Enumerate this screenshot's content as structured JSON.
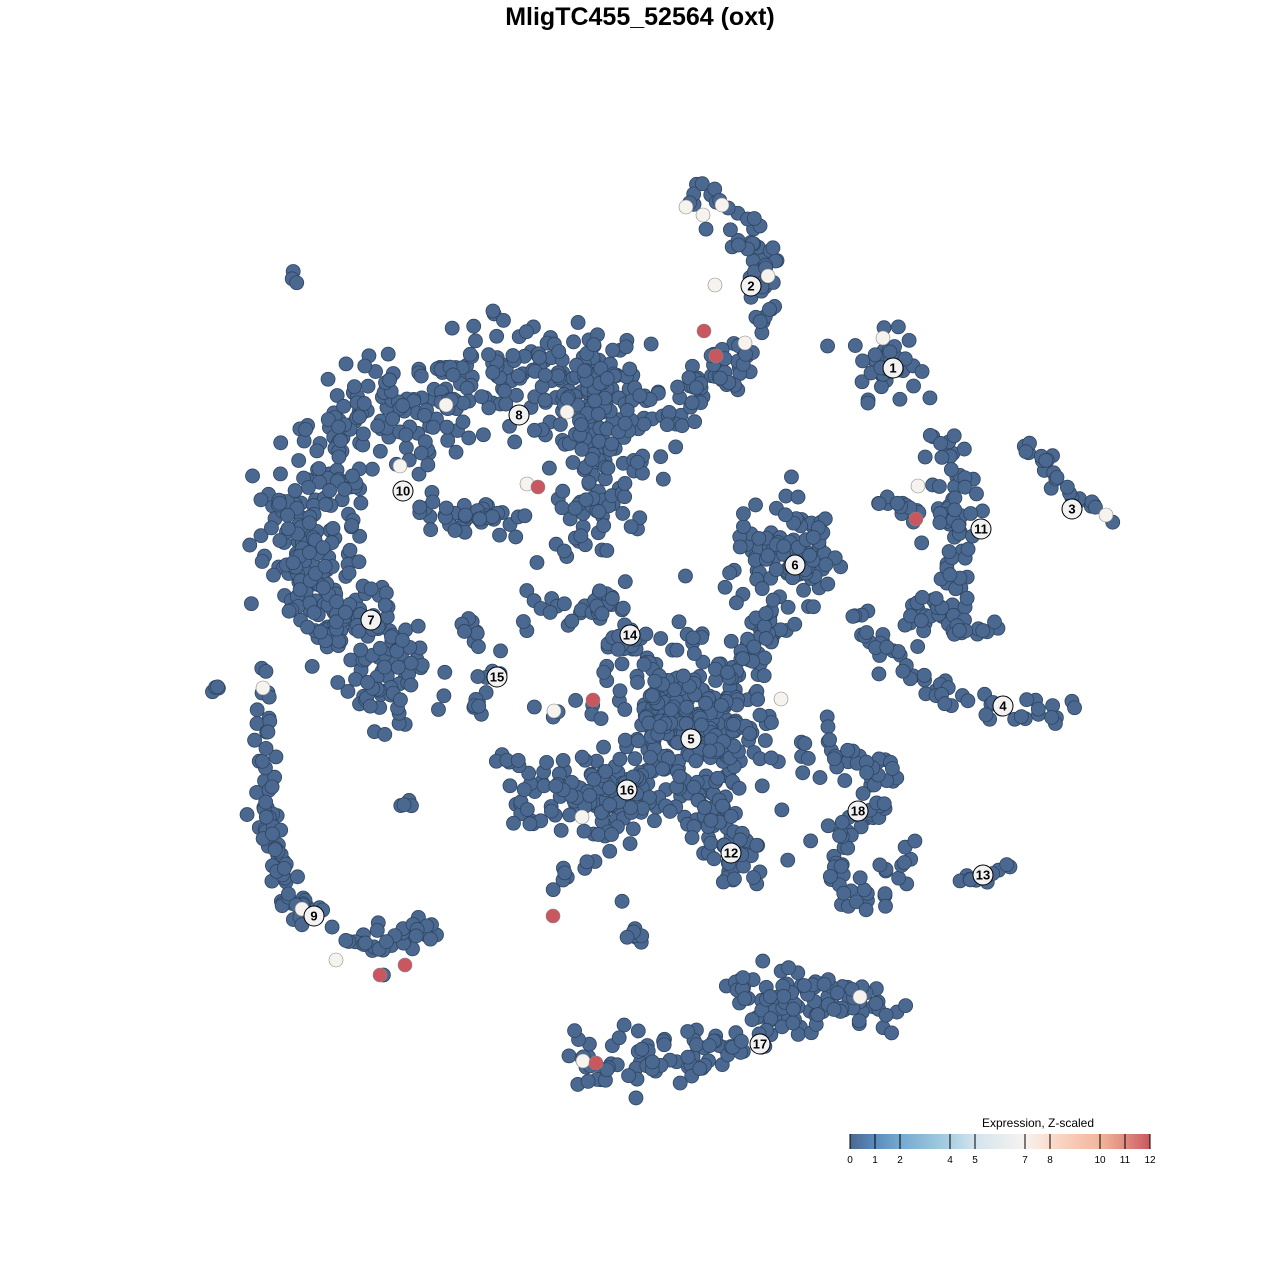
{
  "chart_data": {
    "type": "scatter",
    "title": "MligTC455_52564 (oxt)",
    "xlim": [
      -64,
      64
    ],
    "ylim": [
      -64,
      64
    ],
    "axes_visible": false,
    "grid": false,
    "point_color_default": "#4a6890",
    "background_clusters": [
      {
        "path": [
          [
            5,
            44.5
          ],
          [
            10,
            42
          ],
          [
            12,
            38
          ],
          [
            12.5,
            34
          ],
          [
            10.5,
            30
          ],
          [
            7.5,
            26.5
          ],
          [
            5,
            23.5
          ],
          [
            2.5,
            22.7
          ]
        ],
        "spread": 2.2,
        "n": 110
      },
      {
        "path": [
          [
            24.5,
            27.5
          ]
        ],
        "spread": 3,
        "n": 40
      },
      {
        "path": [
          [
            29.5,
            20.5
          ],
          [
            31.5,
            17
          ],
          [
            31.5,
            13
          ],
          [
            32.5,
            9
          ],
          [
            31.5,
            5
          ],
          [
            29.5,
            2.5
          ],
          [
            27,
            2
          ]
        ],
        "spread": 2,
        "n": 90
      },
      {
        "path": [
          [
            24,
            14
          ],
          [
            28,
            13
          ]
        ],
        "spread": 1.2,
        "n": 15
      },
      {
        "path": [
          [
            30,
            1.5
          ],
          [
            36,
            1
          ]
        ],
        "spread": 1,
        "n": 12
      },
      {
        "path": [
          [
            38.5,
            19.3
          ],
          [
            41,
            17
          ],
          [
            43,
            13.5
          ],
          [
            47,
            12.5
          ]
        ],
        "spread": 1,
        "n": 25
      },
      {
        "path": [
          [
            21.5,
            3.5
          ],
          [
            24,
            -0.5
          ],
          [
            28,
            -4
          ],
          [
            33,
            -6
          ],
          [
            39,
            -7.5
          ],
          [
            42,
            -6.5
          ]
        ],
        "spread": 1.2,
        "n": 55
      },
      {
        "path": [
          [
            14.5,
            8.5
          ]
        ],
        "spread": 4.5,
        "n": 110
      },
      {
        "path": [
          [
            9,
            -5
          ],
          [
            12,
            0
          ],
          [
            13.5,
            3
          ]
        ],
        "spread": 2,
        "n": 40
      },
      {
        "path": [
          [
            -33,
            15
          ],
          [
            -28,
            20
          ],
          [
            -21,
            24
          ],
          [
            -14,
            26.5
          ],
          [
            -6,
            27
          ],
          [
            -4,
            23
          ],
          [
            -4,
            17
          ],
          [
            -4.5,
            11
          ]
        ],
        "spread": 5,
        "n": 450
      },
      {
        "path": [
          [
            -34,
            14
          ],
          [
            -33.5,
            7
          ],
          [
            -31,
            3
          ],
          [
            -26,
            -1
          ],
          [
            -24,
            -6
          ]
        ],
        "spread": 4,
        "n": 250
      },
      {
        "path": [
          [
            -21,
            13
          ],
          [
            -12,
            12
          ]
        ],
        "spread": 2,
        "n": 40
      },
      {
        "path": [
          [
            -36.8,
            -3
          ],
          [
            -37.2,
            -12
          ],
          [
            -37,
            -20
          ],
          [
            -35,
            -26
          ],
          [
            -30,
            -29
          ],
          [
            -25,
            -31
          ],
          [
            -21.5,
            -28.5
          ]
        ],
        "spread": 1.5,
        "n": 110
      },
      {
        "path": [
          [
            -18,
            1.5
          ],
          [
            -15,
            -1
          ],
          [
            -14.5,
            -4
          ],
          [
            -16.5,
            -7
          ]
        ],
        "spread": 1,
        "n": 20
      },
      {
        "path": [
          [
            -11,
            2.8
          ],
          [
            -4,
            4
          ],
          [
            -1,
            1
          ],
          [
            -3,
            -2
          ]
        ],
        "spread": 2,
        "n": 50
      },
      {
        "path": [
          [
            5,
            -9
          ]
        ],
        "spread": 7,
        "n": 320
      },
      {
        "path": [
          [
            -12,
            -17
          ],
          [
            -6,
            -14
          ],
          [
            -1,
            -15
          ],
          [
            -3,
            -19
          ]
        ],
        "spread": 3,
        "n": 120
      },
      {
        "path": [
          [
            6,
            -16
          ],
          [
            8,
            -21
          ],
          [
            11,
            -22
          ]
        ],
        "spread": 3,
        "n": 60
      },
      {
        "path": [
          [
            16,
            -11
          ],
          [
            22,
            -12.5
          ],
          [
            24,
            -14.5
          ],
          [
            21,
            -18
          ],
          [
            20,
            -24
          ],
          [
            24,
            -26
          ],
          [
            27,
            -19
          ]
        ],
        "spread": 2.2,
        "n": 90
      },
      {
        "path": [
          [
            31.5,
            -23.8
          ],
          [
            35,
            -23.8
          ],
          [
            37.2,
            -22.2
          ]
        ],
        "spread": 0.8,
        "n": 12
      },
      {
        "path": [
          [
            -6,
            -42.2
          ],
          [
            1,
            -42
          ],
          [
            8,
            -40.5
          ],
          [
            14,
            -37.5
          ],
          [
            21,
            -35.5
          ],
          [
            25.5,
            -37.2
          ]
        ],
        "spread": 2.5,
        "n": 150
      },
      {
        "path": [
          [
            10,
            -35
          ],
          [
            18,
            -34.5
          ]
        ],
        "spread": 1.5,
        "n": 30
      },
      {
        "path": [
          [
            -35,
            37
          ],
          [
            -34,
            35.8
          ]
        ],
        "spread": 0.4,
        "n": 3
      },
      {
        "path": [
          [
            -42.5,
            -5
          ],
          [
            -42,
            -4.5
          ]
        ],
        "spread": 0.3,
        "n": 4
      },
      {
        "path": [
          [
            -23,
            -16.5
          ]
        ],
        "spread": 0.6,
        "n": 4
      },
      {
        "path": [
          [
            -15,
            -12
          ],
          [
            -12,
            -12
          ]
        ],
        "spread": 0.5,
        "n": 5
      },
      {
        "path": [
          [
            -2,
            -27
          ],
          [
            1,
            -31
          ]
        ],
        "spread": 1,
        "n": 8
      },
      {
        "path": [
          [
            -8.5,
            -25
          ],
          [
            -5,
            -22
          ]
        ],
        "spread": 0.8,
        "n": 8
      },
      {
        "path": [
          [
            -11,
            -7
          ],
          [
            -8,
            -7.5
          ]
        ],
        "spread": 0.5,
        "n": 3
      }
    ],
    "expressing_points": [
      {
        "x": 4.6,
        "y": 43.3,
        "value": 7
      },
      {
        "x": 6.3,
        "y": 42.5,
        "value": 7
      },
      {
        "x": 8.2,
        "y": 43.5,
        "value": 7
      },
      {
        "x": 7.5,
        "y": 35.5,
        "value": 7
      },
      {
        "x": 12.8,
        "y": 36.4,
        "value": 7
      },
      {
        "x": 10.5,
        "y": 29.7,
        "value": 7
      },
      {
        "x": 24.3,
        "y": 30.2,
        "value": 7
      },
      {
        "x": 27.8,
        "y": 15.4,
        "value": 7
      },
      {
        "x": 46.6,
        "y": 12.5,
        "value": 7
      },
      {
        "x": 14.1,
        "y": -5.9,
        "value": 7
      },
      {
        "x": -8.6,
        "y": -7.1,
        "value": 7
      },
      {
        "x": -37.7,
        "y": -4.8,
        "value": 7
      },
      {
        "x": -33.8,
        "y": -26.9,
        "value": 7
      },
      {
        "x": -30.4,
        "y": -32,
        "value": 7
      },
      {
        "x": -5.8,
        "y": -17.7,
        "value": 7
      },
      {
        "x": 22,
        "y": -35.7,
        "value": 7
      },
      {
        "x": -5.7,
        "y": -42.1,
        "value": 7
      },
      {
        "x": -7.3,
        "y": 22.8,
        "value": 7
      },
      {
        "x": -19.4,
        "y": 23.5,
        "value": 7
      },
      {
        "x": -24,
        "y": 17.4,
        "value": 7
      },
      {
        "x": -11.3,
        "y": 15.6,
        "value": 7
      },
      {
        "x": 6.4,
        "y": 30.9,
        "value": 12
      },
      {
        "x": 7.6,
        "y": 28.4,
        "value": 12
      },
      {
        "x": -10.2,
        "y": 15.3,
        "value": 12
      },
      {
        "x": 27.6,
        "y": 12.1,
        "value": 12
      },
      {
        "x": -4.7,
        "y": -6,
        "value": 12
      },
      {
        "x": -8.7,
        "y": -27.6,
        "value": 12
      },
      {
        "x": -26,
        "y": -33.5,
        "value": 12
      },
      {
        "x": -23.5,
        "y": -32.5,
        "value": 12
      },
      {
        "x": -4.4,
        "y": -42.3,
        "value": 12
      }
    ],
    "cluster_labels": [
      {
        "text": "1",
        "x": 25.3,
        "y": 27.2
      },
      {
        "text": "2",
        "x": 11.1,
        "y": 35.4
      },
      {
        "text": "3",
        "x": 43.2,
        "y": 13.1
      },
      {
        "text": "4",
        "x": 36.3,
        "y": -6.6
      },
      {
        "text": "5",
        "x": 5.1,
        "y": -9.9
      },
      {
        "text": "6",
        "x": 15.5,
        "y": 7.5
      },
      {
        "text": "7",
        "x": -26.9,
        "y": 2
      },
      {
        "text": "8",
        "x": -12.1,
        "y": 22.5
      },
      {
        "text": "9",
        "x": -32.6,
        "y": -27.6
      },
      {
        "text": "10",
        "x": -23.7,
        "y": 14.9
      },
      {
        "text": "11",
        "x": 34.1,
        "y": 11.1
      },
      {
        "text": "12",
        "x": 9.1,
        "y": -21.3
      },
      {
        "text": "13",
        "x": 34.3,
        "y": -23.5
      },
      {
        "text": "14",
        "x": -1,
        "y": 0.5
      },
      {
        "text": "15",
        "x": -14.3,
        "y": -3.7
      },
      {
        "text": "16",
        "x": -1.3,
        "y": -15
      },
      {
        "text": "17",
        "x": 12,
        "y": -40.4
      },
      {
        "text": "18",
        "x": 21.8,
        "y": -17.1
      }
    ],
    "legend": {
      "title": "Expression, Z-scaled",
      "placement": "bottom-right",
      "range": [
        0,
        12
      ],
      "ticks": [
        "0",
        "1",
        "2",
        "4",
        "5",
        "7",
        "8",
        "10",
        "11",
        "12"
      ],
      "color_stops": [
        {
          "value": 0,
          "color": "#4a6890"
        },
        {
          "value": 1,
          "color": "#5b8bbd"
        },
        {
          "value": 2,
          "color": "#74a9cf"
        },
        {
          "value": 4,
          "color": "#a9d0e2"
        },
        {
          "value": 5,
          "color": "#d3e4ee"
        },
        {
          "value": 7,
          "color": "#f6f3ef"
        },
        {
          "value": 8,
          "color": "#fbdccb"
        },
        {
          "value": 10,
          "color": "#f3b59b"
        },
        {
          "value": 11,
          "color": "#e08c80"
        },
        {
          "value": 12,
          "color": "#c9575f"
        }
      ]
    }
  }
}
